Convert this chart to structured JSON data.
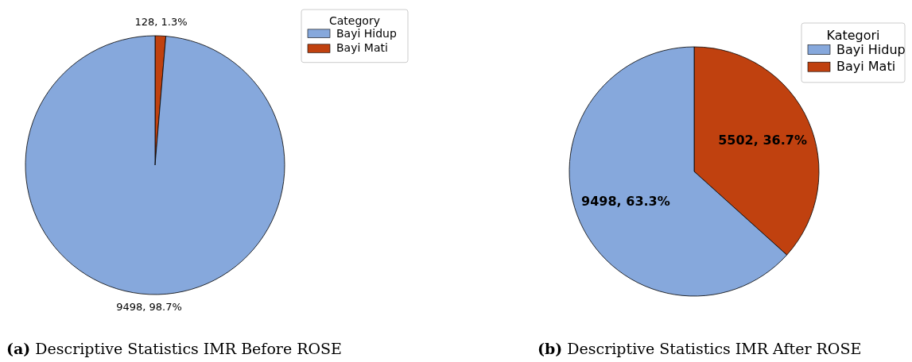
{
  "chart_data": [
    {
      "type": "pie",
      "title": "(a) Descriptive Statistics IMR Before ROSE",
      "legend_title": "Category",
      "legend": "top right",
      "categories": [
        "Bayi Hidup",
        "Bayi Mati"
      ],
      "values": [
        9498,
        128
      ],
      "colors": [
        "#86a8dc",
        "#c0410f"
      ],
      "value_labels": [
        "9498, 98.7%",
        "128, 1.3%"
      ]
    },
    {
      "type": "pie",
      "title": "(b) Descriptive Statistics IMR After ROSE",
      "legend_title": "Kategori",
      "legend": "top right",
      "categories": [
        "Bayi Hidup",
        "Bayi Mati"
      ],
      "values": [
        9498,
        5502
      ],
      "colors": [
        "#86a8dc",
        "#c0410f"
      ],
      "value_labels": [
        "9498, 63.3%",
        "5502, 36.7%"
      ]
    }
  ]
}
